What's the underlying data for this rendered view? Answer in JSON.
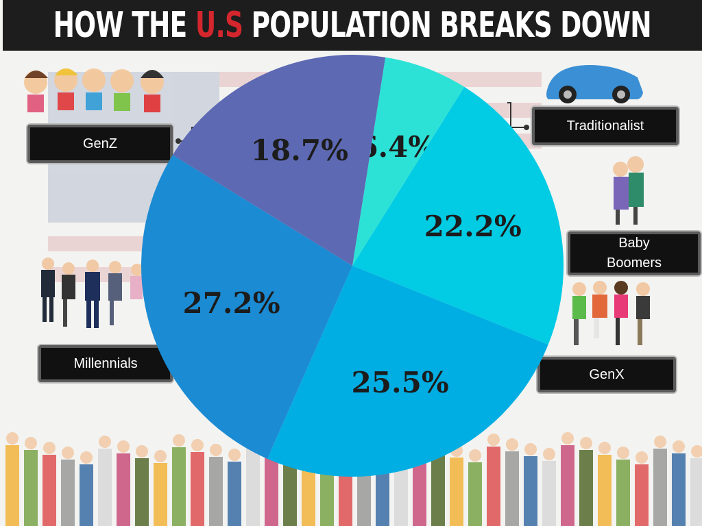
{
  "header": {
    "title_before": "HOW THE ",
    "title_accent": "U.S",
    "title_after": " POPULATION BREAKS DOWN",
    "accent_color": "#d4262d"
  },
  "labels": {
    "genz": "GenZ",
    "traditionalist": "Traditionalist",
    "baby_boomers_line1": "Baby",
    "baby_boomers_line2": "Boomers",
    "millennials": "Millennials",
    "genx": "GenX"
  },
  "chart_data": {
    "type": "pie",
    "start_angle_deg": 9,
    "slices": [
      {
        "label": "Traditionalist",
        "value": 6.4,
        "text": "6.4%",
        "color": "#2ce2d6"
      },
      {
        "label": "Baby Boomers",
        "value": 22.2,
        "text": "22.2%",
        "color": "#02cbe4"
      },
      {
        "label": "GenX",
        "value": 25.5,
        "text": "25.5%",
        "color": "#00aee3"
      },
      {
        "label": "Millennials",
        "value": 27.2,
        "text": "27.2%",
        "color": "#1b8bd3"
      },
      {
        "label": "GenZ",
        "value": 18.7,
        "text": "18.7%",
        "color": "#5d69b3"
      }
    ]
  }
}
